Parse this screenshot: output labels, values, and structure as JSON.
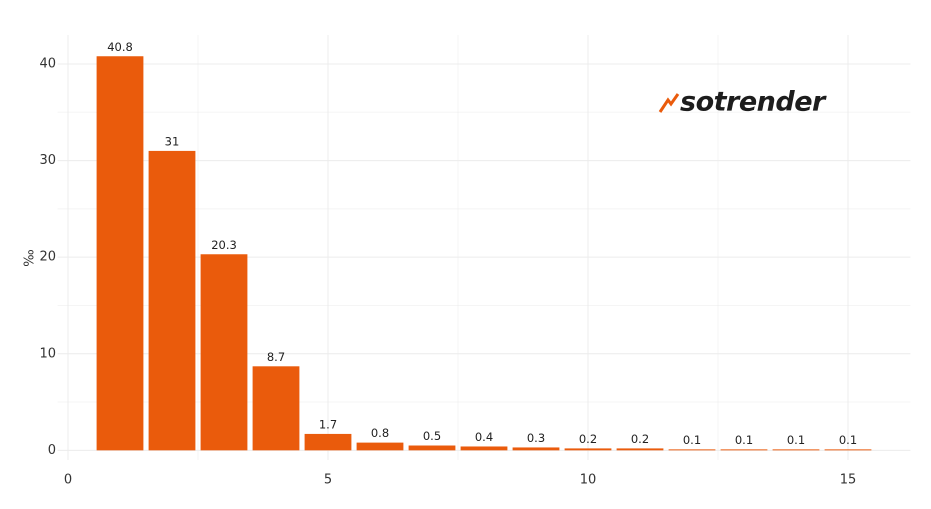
{
  "chart_data": {
    "type": "bar",
    "y_label": "‰",
    "logo": "sotrender",
    "x": [
      1,
      2,
      3,
      4,
      5,
      6,
      7,
      8,
      9,
      10,
      11,
      12,
      13,
      14,
      15
    ],
    "values": [
      40.8,
      31,
      20.3,
      8.7,
      1.7,
      0.8,
      0.5,
      0.4,
      0.3,
      0.2,
      0.2,
      0.1,
      0.1,
      0.1,
      0.1
    ],
    "color": "#ea5b0c",
    "xlim": [
      -0.2,
      16.2
    ],
    "xticks": [
      0,
      5,
      10,
      15
    ],
    "ylim": [
      -1,
      43
    ],
    "yticks": [
      0,
      10,
      20,
      30,
      40
    ],
    "grid": true
  }
}
